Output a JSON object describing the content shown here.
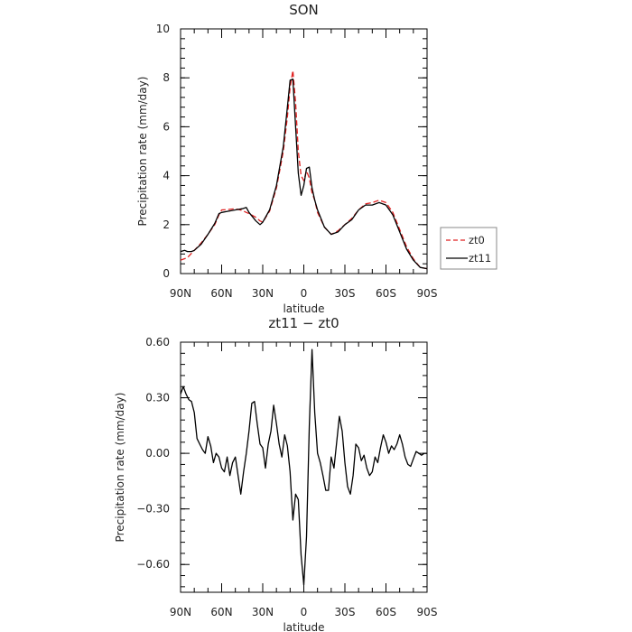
{
  "chart_data": [
    {
      "type": "line",
      "title": "SON",
      "xlabel": "latitude",
      "ylabel": "Precipitation rate (mm/day)",
      "xlim": [
        90,
        -90
      ],
      "ylim": [
        0,
        10
      ],
      "x_ticks": [
        90,
        60,
        30,
        0,
        -30,
        -60,
        -90
      ],
      "x_tick_labels": [
        "90N",
        "60N",
        "30N",
        "0",
        "30S",
        "60S",
        "90S"
      ],
      "y_ticks": [
        0,
        2,
        4,
        6,
        8,
        10
      ],
      "y_tick_labels": [
        "0",
        "2",
        "4",
        "6",
        "8",
        "10"
      ],
      "legend_position": "right",
      "series": [
        {
          "name": "zt0",
          "color": "#e02020",
          "dash": "dashed",
          "x": [
            90,
            85,
            80,
            75,
            70,
            65,
            62,
            60,
            55,
            50,
            45,
            42,
            40,
            35,
            32,
            30,
            25,
            20,
            15,
            12,
            10,
            8,
            6,
            4,
            2,
            0,
            -2,
            -4,
            -6,
            -8,
            -10,
            -15,
            -20,
            -25,
            -30,
            -35,
            -40,
            -45,
            -50,
            -55,
            -60,
            -65,
            -70,
            -75,
            -80,
            -85,
            -90
          ],
          "y": [
            0.55,
            0.65,
            0.95,
            1.25,
            1.6,
            2.0,
            2.4,
            2.6,
            2.62,
            2.65,
            2.58,
            2.5,
            2.45,
            2.3,
            2.15,
            2.1,
            2.55,
            3.5,
            5.0,
            6.4,
            7.6,
            8.3,
            7.0,
            5.0,
            4.0,
            3.8,
            4.2,
            3.9,
            3.3,
            3.0,
            2.5,
            1.9,
            1.6,
            1.75,
            2.0,
            2.25,
            2.6,
            2.85,
            2.9,
            3.0,
            2.9,
            2.5,
            1.8,
            1.1,
            0.6,
            0.25,
            0.2
          ]
        },
        {
          "name": "zt11",
          "color": "#000000",
          "dash": "solid",
          "x": [
            90,
            87,
            85,
            82,
            80,
            75,
            70,
            65,
            62,
            60,
            55,
            50,
            45,
            42,
            40,
            35,
            32,
            30,
            25,
            20,
            15,
            12,
            10,
            8,
            6,
            4,
            2,
            0,
            -2,
            -4,
            -6,
            -8,
            -10,
            -15,
            -20,
            -25,
            -30,
            -35,
            -40,
            -45,
            -50,
            -55,
            -60,
            -65,
            -70,
            -75,
            -80,
            -85,
            -90
          ],
          "y": [
            0.9,
            0.95,
            0.9,
            0.9,
            0.95,
            1.2,
            1.6,
            2.05,
            2.45,
            2.5,
            2.55,
            2.6,
            2.65,
            2.7,
            2.5,
            2.15,
            2.0,
            2.1,
            2.6,
            3.6,
            5.2,
            6.8,
            7.9,
            7.95,
            6.0,
            4.1,
            3.2,
            3.6,
            4.3,
            4.35,
            3.5,
            3.0,
            2.6,
            1.9,
            1.6,
            1.7,
            2.0,
            2.2,
            2.6,
            2.8,
            2.8,
            2.9,
            2.8,
            2.4,
            1.7,
            1.0,
            0.55,
            0.25,
            0.2
          ]
        }
      ]
    },
    {
      "type": "line",
      "title": "zt11 − zt0",
      "xlabel": "latitude",
      "ylabel": "Precipitation rate (mm/day)",
      "xlim": [
        90,
        -90
      ],
      "ylim": [
        -0.75,
        0.6
      ],
      "x_ticks": [
        90,
        60,
        30,
        0,
        -30,
        -60,
        -90
      ],
      "x_tick_labels": [
        "90N",
        "60N",
        "30N",
        "0",
        "30S",
        "60S",
        "90S"
      ],
      "y_ticks": [
        0.6,
        0.3,
        0,
        -0.3,
        -0.6
      ],
      "y_tick_labels": [
        "0.60",
        "0.30",
        "0.00",
        "−0.30",
        "−0.60"
      ],
      "series": [
        {
          "color": "#000000",
          "x": [
            90,
            88,
            86,
            84,
            82,
            80,
            78,
            76,
            74,
            72,
            70,
            68,
            66,
            64,
            62,
            60,
            58,
            56,
            54,
            52,
            50,
            48,
            46,
            44,
            42,
            40,
            38,
            36,
            34,
            32,
            30,
            28,
            26,
            24,
            22,
            20,
            18,
            16,
            14,
            12,
            10,
            8,
            6,
            4,
            2,
            0,
            -2,
            -4,
            -6,
            -8,
            -10,
            -12,
            -14,
            -16,
            -18,
            -20,
            -22,
            -24,
            -26,
            -28,
            -30,
            -32,
            -34,
            -36,
            -38,
            -40,
            -42,
            -44,
            -46,
            -48,
            -50,
            -52,
            -54,
            -56,
            -58,
            -60,
            -62,
            -64,
            -66,
            -68,
            -70,
            -72,
            -74,
            -76,
            -78,
            -80,
            -82,
            -84,
            -86,
            -88,
            -90
          ],
          "y": [
            0.32,
            0.36,
            0.32,
            0.29,
            0.28,
            0.22,
            0.08,
            0.05,
            0.02,
            0.0,
            0.09,
            0.04,
            -0.05,
            0.0,
            -0.02,
            -0.08,
            -0.1,
            -0.02,
            -0.12,
            -0.05,
            -0.02,
            -0.12,
            -0.22,
            -0.1,
            0.0,
            0.12,
            0.27,
            0.28,
            0.16,
            0.05,
            0.03,
            -0.08,
            0.05,
            0.12,
            0.26,
            0.16,
            0.05,
            -0.02,
            0.1,
            0.04,
            -0.1,
            -0.36,
            -0.22,
            -0.25,
            -0.55,
            -0.71,
            -0.45,
            0.15,
            0.56,
            0.22,
            0.0,
            -0.05,
            -0.12,
            -0.2,
            -0.2,
            -0.02,
            -0.08,
            0.06,
            0.2,
            0.12,
            -0.05,
            -0.18,
            -0.22,
            -0.12,
            0.05,
            0.03,
            -0.04,
            -0.01,
            -0.08,
            -0.12,
            -0.1,
            -0.02,
            -0.05,
            0.03,
            0.1,
            0.06,
            0.0,
            0.04,
            0.02,
            0.05,
            0.1,
            0.05,
            -0.02,
            -0.06,
            -0.07,
            -0.03,
            0.01,
            0.0,
            -0.01,
            0.0,
            0.0
          ]
        }
      ]
    }
  ]
}
